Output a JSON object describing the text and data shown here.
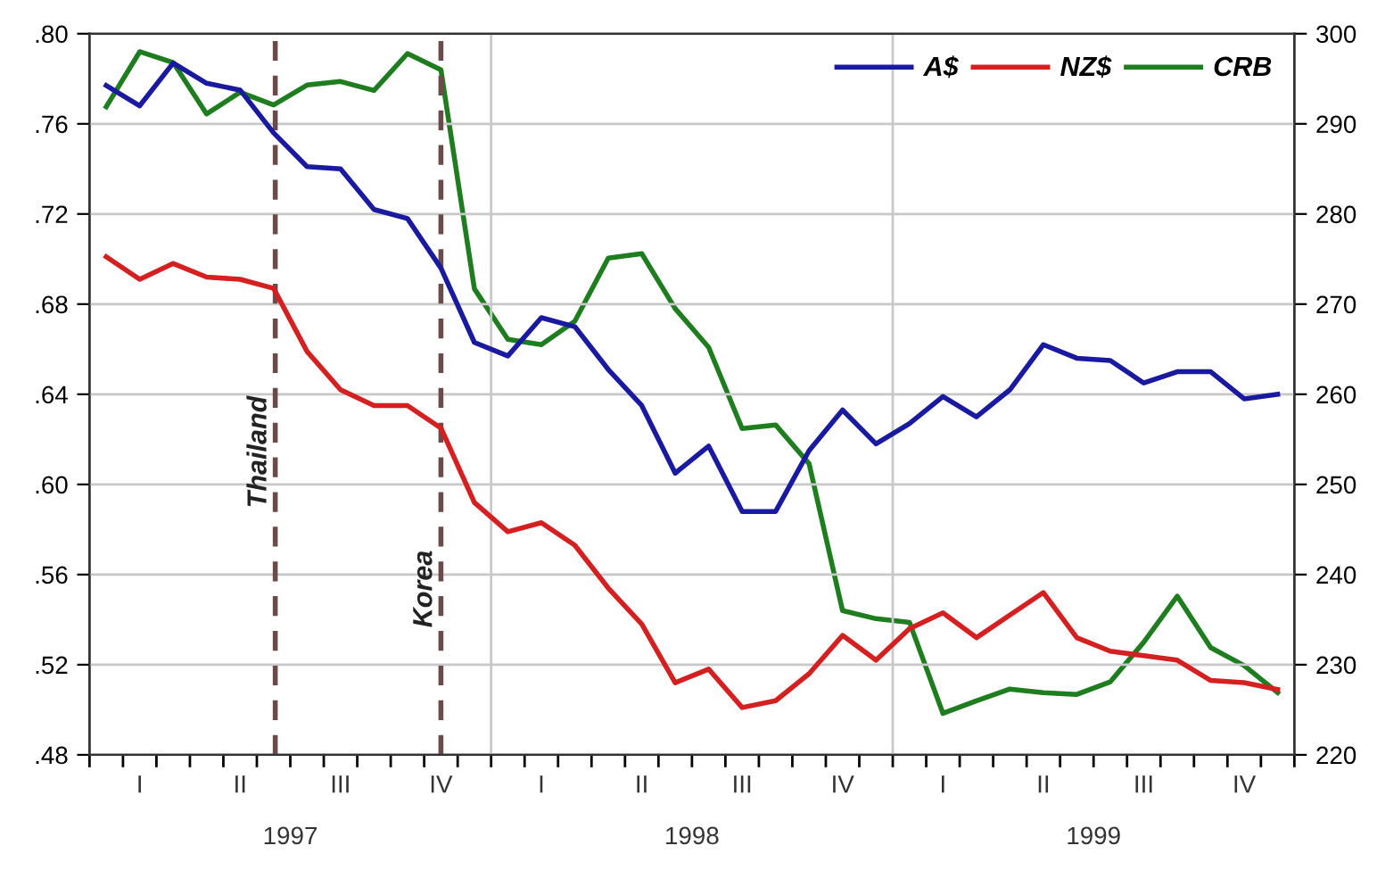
{
  "chart_data": {
    "type": "line",
    "categories": [
      null,
      "I",
      null,
      null,
      "II",
      null,
      null,
      "III",
      null,
      null,
      "IV",
      null,
      null,
      "I",
      null,
      null,
      "II",
      null,
      null,
      "III",
      null,
      null,
      "IV",
      null,
      null,
      "I",
      null,
      null,
      "II",
      null,
      null,
      "III",
      null,
      null,
      "IV",
      null
    ],
    "series": [
      {
        "name": "A$",
        "color": "#1a1aa0",
        "values": [
          0.777,
          0.768,
          0.787,
          0.778,
          0.775,
          0.756,
          0.741,
          0.74,
          0.722,
          0.718,
          0.696,
          0.663,
          0.657,
          0.674,
          0.67,
          0.651,
          0.635,
          0.605,
          0.617,
          0.588,
          0.588,
          0.615,
          0.633,
          0.618,
          0.627,
          0.639,
          0.63,
          0.642,
          0.662,
          0.656,
          0.655,
          0.645,
          0.65,
          0.65,
          0.638,
          0.64
        ]
      },
      {
        "name": "NZ$",
        "color": "#d42020",
        "values": [
          0.701,
          0.691,
          0.698,
          0.692,
          0.691,
          0.687,
          0.659,
          0.642,
          0.635,
          0.635,
          0.625,
          0.592,
          0.579,
          0.583,
          0.573,
          0.554,
          0.538,
          0.512,
          0.518,
          0.501,
          0.504,
          0.516,
          0.533,
          0.522,
          0.536,
          0.543,
          0.532,
          0.542,
          0.552,
          0.532,
          0.526,
          0.524,
          0.522,
          0.513,
          0.512,
          0.509
        ]
      },
      {
        "name": "CRB",
        "color": "#1e7d1e",
        "axis": "y2",
        "values": [
          291.9,
          298.0,
          296.8,
          291.1,
          293.5,
          292.1,
          294.3,
          294.7,
          293.7,
          297.8,
          296.0,
          271.7,
          266.1,
          265.5,
          268.1,
          275.1,
          275.6,
          269.5,
          265.2,
          256.2,
          256.6,
          252.3,
          236.0,
          235.1,
          234.7,
          224.6,
          226.0,
          227.3,
          226.9,
          226.7,
          228.1,
          232.5,
          237.6,
          231.9,
          229.9,
          226.9
        ]
      }
    ],
    "annotations": [
      "1997",
      "1998",
      "1999",
      "Thailand",
      "Korea"
    ],
    "ylim": [
      0.48,
      0.8
    ],
    "yticks": [
      {
        "value": 0.48,
        "label": ".48"
      },
      {
        "value": 0.52,
        "label": ".52"
      },
      {
        "value": 0.56,
        "label": ".56"
      },
      {
        "value": 0.6,
        "label": ".60"
      },
      {
        "value": 0.64,
        "label": ".64"
      },
      {
        "value": 0.68,
        "label": ".68"
      },
      {
        "value": 0.72,
        "label": ".72"
      },
      {
        "value": 0.76,
        "label": ".76"
      },
      {
        "value": 0.8,
        "label": ".80"
      }
    ],
    "y2lim": [
      220,
      300
    ],
    "y2ticks": [
      220,
      230,
      240,
      250,
      260,
      270,
      280,
      290,
      300
    ],
    "grid": true,
    "legend": "top right",
    "marker": "none",
    "line_style": "solid"
  }
}
